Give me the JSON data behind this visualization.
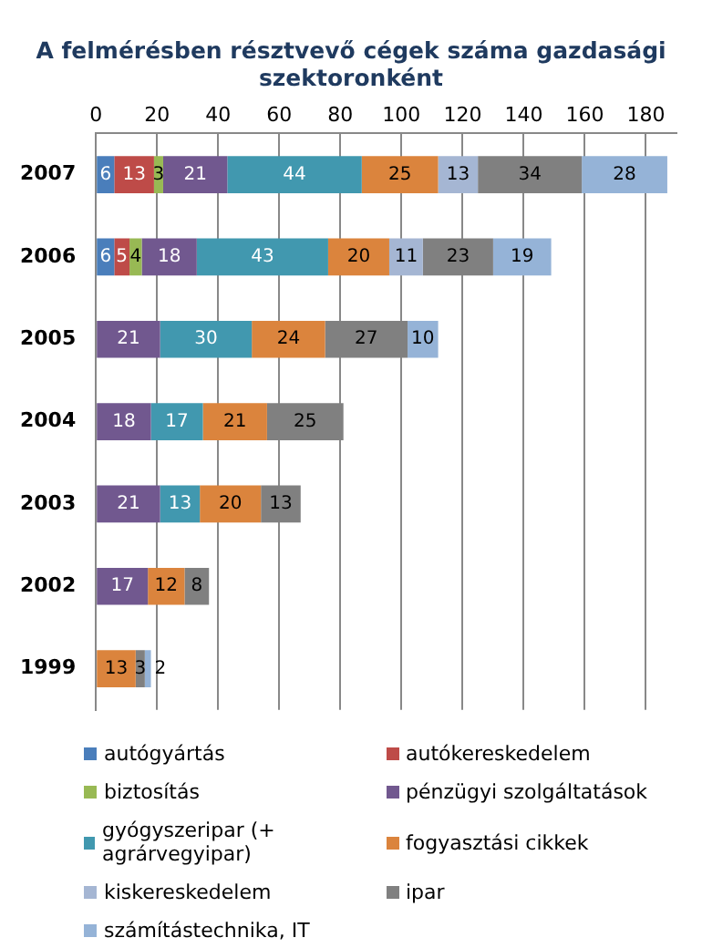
{
  "chart_data": {
    "type": "bar",
    "orientation": "horizontal",
    "stacked": true,
    "title": "A felmérésben résztvevő cégek száma gazdasági szektoronként",
    "categories": [
      "2007",
      "2006",
      "2005",
      "2004",
      "2003",
      "2002",
      "1999"
    ],
    "series": [
      {
        "name": "autógyártás",
        "color": "#4a7ebb",
        "values": [
          6,
          6,
          null,
          null,
          null,
          null,
          null
        ]
      },
      {
        "name": "autókereskedelem",
        "color": "#be4b48",
        "values": [
          13,
          5,
          null,
          null,
          null,
          null,
          null
        ]
      },
      {
        "name": "biztosítás",
        "color": "#98b954",
        "values": [
          3,
          4,
          null,
          null,
          null,
          null,
          null
        ]
      },
      {
        "name": "pénzügyi szolgáltatások",
        "color": "#71588f",
        "values": [
          21,
          18,
          21,
          18,
          21,
          17,
          null
        ]
      },
      {
        "name": "gyógyszeripar (+ agrárvegyipar)",
        "color": "#4198af",
        "values": [
          44,
          43,
          30,
          17,
          13,
          null,
          null
        ]
      },
      {
        "name": "fogyasztási cikkek",
        "color": "#db843d",
        "values": [
          25,
          20,
          24,
          21,
          20,
          12,
          13
        ]
      },
      {
        "name": "kiskereskedelem",
        "color": "#a5b6d3",
        "values": [
          13,
          11,
          null,
          null,
          null,
          null,
          null
        ]
      },
      {
        "name": "ipar",
        "color": "#808080",
        "values": [
          34,
          23,
          27,
          25,
          13,
          8,
          3
        ]
      },
      {
        "name": "számítástechnika, IT",
        "color": "#95b3d7",
        "values": [
          28,
          19,
          10,
          null,
          null,
          null,
          2
        ]
      }
    ],
    "xlim": [
      0,
      190
    ],
    "xticks": [
      0,
      20,
      40,
      60,
      80,
      100,
      120,
      140,
      160,
      180
    ],
    "grid": "x",
    "legend": "bottom",
    "data_labels": true
  }
}
